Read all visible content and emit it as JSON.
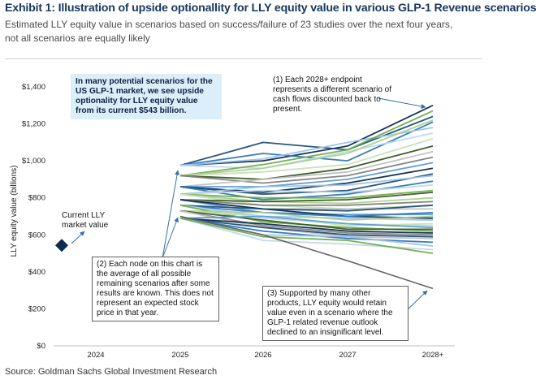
{
  "header": {
    "title": "Exhibit 1: Illustration of upside optionallity for LLY equity value in various GLP-1 Revenue scenarios",
    "subtitle": "Estimated LLY equity value in scenarios based on success/failure of 23 studies over the next four years, not all scenarios are equally likely"
  },
  "annotations": {
    "current_label": "Current LLY market value",
    "upside_box": "In many potential scenarios for the US GLP-1 market, we see upside optionality for LLY equity value from its current $543 billion.",
    "note1": "(1) Each 2028+ endpoint represents a different scenario of cash flows discounted back to present.",
    "note2": "(2) Each node on this chart is the average of all possible remaining scenarios after some results are known. This does not represent an expected stock price in that year.",
    "note3": "(3) Supported by many other products, LLY equity would retain value even in a scenario where the GLP-1 related revenue outlook declined to an insignificant level."
  },
  "footer": {
    "source": "Source: Goldman Sachs Global Investment Research"
  },
  "colors": {
    "title": "#17375e",
    "marker": "#0d2b4e",
    "palette": [
      "#0d2b4e",
      "#1f4e79",
      "#2e75b6",
      "#9dc3e6",
      "#bdd7ee",
      "#70ad47",
      "#a9d18e",
      "#c5e0b4",
      "#375623",
      "#808080",
      "#bfbfbf",
      "#5b9bd5"
    ]
  },
  "chart_data": {
    "type": "line",
    "ylabel": "LLY equity value (billions)",
    "x": [
      "2024",
      "2025",
      "2026",
      "2027",
      "2028+"
    ],
    "ylim": [
      0,
      1400
    ],
    "yticks": [
      0,
      200,
      400,
      600,
      800,
      1000,
      1200,
      1400
    ],
    "ytick_labels": [
      "$0",
      "$200",
      "$400",
      "$600",
      "$800",
      "$1,000",
      "$1,200",
      "$1,400"
    ],
    "grid": false,
    "current_value": {
      "x": "2024",
      "y": 543
    },
    "series": [
      {
        "values": [
          null,
          975,
          1000,
          1080,
          1300
        ]
      },
      {
        "values": [
          null,
          975,
          1100,
          1060,
          1240
        ]
      },
      {
        "values": [
          null,
          975,
          1040,
          1000,
          1210
        ]
      },
      {
        "values": [
          null,
          975,
          1010,
          1100,
          1180
        ]
      },
      {
        "values": [
          null,
          975,
          960,
          1050,
          1150
        ]
      },
      {
        "values": [
          null,
          920,
          980,
          1060,
          1270
        ]
      },
      {
        "values": [
          null,
          920,
          960,
          1040,
          1220
        ]
      },
      {
        "values": [
          null,
          920,
          940,
          980,
          1120
        ]
      },
      {
        "values": [
          null,
          920,
          900,
          960,
          1080
        ]
      },
      {
        "values": [
          null,
          920,
          880,
          920,
          1020
        ]
      },
      {
        "values": [
          null,
          860,
          900,
          940,
          1050
        ]
      },
      {
        "values": [
          null,
          860,
          860,
          900,
          990
        ]
      },
      {
        "values": [
          null,
          860,
          830,
          880,
          960
        ]
      },
      {
        "values": [
          null,
          860,
          820,
          840,
          930
        ]
      },
      {
        "values": [
          null,
          860,
          790,
          820,
          890
        ]
      },
      {
        "values": [
          null,
          820,
          860,
          870,
          920
        ]
      },
      {
        "values": [
          null,
          820,
          840,
          830,
          870
        ]
      },
      {
        "values": [
          null,
          820,
          800,
          800,
          840
        ]
      },
      {
        "values": [
          null,
          820,
          780,
          770,
          800
        ]
      },
      {
        "values": [
          null,
          820,
          760,
          740,
          760
        ]
      },
      {
        "values": [
          null,
          790,
          780,
          790,
          830
        ]
      },
      {
        "values": [
          null,
          790,
          760,
          760,
          780
        ]
      },
      {
        "values": [
          null,
          790,
          740,
          740,
          740
        ]
      },
      {
        "values": [
          null,
          790,
          720,
          710,
          710
        ]
      },
      {
        "values": [
          null,
          790,
          740,
          700,
          690
        ]
      },
      {
        "values": [
          null,
          760,
          740,
          730,
          760
        ]
      },
      {
        "values": [
          null,
          760,
          720,
          700,
          720
        ]
      },
      {
        "values": [
          null,
          760,
          700,
          690,
          680
        ]
      },
      {
        "values": [
          null,
          760,
          690,
          660,
          650
        ]
      },
      {
        "values": [
          null,
          760,
          670,
          640,
          620
        ]
      },
      {
        "values": [
          null,
          730,
          720,
          680,
          700
        ]
      },
      {
        "values": [
          null,
          730,
          700,
          650,
          660
        ]
      },
      {
        "values": [
          null,
          730,
          680,
          630,
          630
        ]
      },
      {
        "values": [
          null,
          730,
          650,
          610,
          600
        ]
      },
      {
        "values": [
          null,
          730,
          640,
          590,
          580
        ]
      },
      {
        "values": [
          null,
          690,
          700,
          660,
          640
        ]
      },
      {
        "values": [
          null,
          690,
          660,
          620,
          610
        ]
      },
      {
        "values": [
          null,
          690,
          640,
          600,
          590
        ]
      },
      {
        "values": [
          null,
          690,
          620,
          580,
          560
        ]
      },
      {
        "values": [
          null,
          690,
          600,
          590,
          540
        ]
      },
      {
        "values": [
          null,
          690,
          570,
          550,
          520
        ]
      },
      {
        "values": [
          null,
          690,
          590,
          570,
          500
        ]
      },
      {
        "values": [
          null,
          700,
          600,
          460,
          310
        ]
      }
    ]
  }
}
